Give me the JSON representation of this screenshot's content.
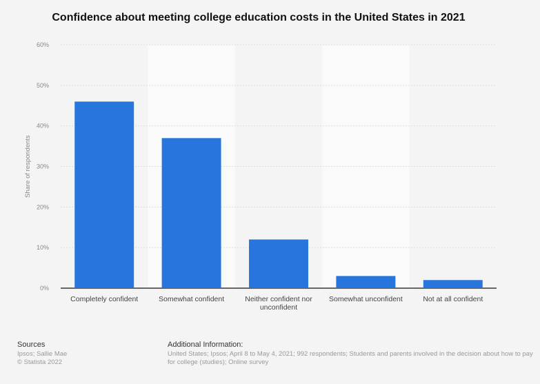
{
  "chart_data": {
    "type": "bar",
    "title": "Confidence about meeting college education costs in the United States in 2021",
    "categories": [
      "Completely confident",
      "Somewhat confident",
      "Neither confident nor unconfident",
      "Somewhat unconfident",
      "Not at all confident"
    ],
    "values": [
      46,
      37,
      12,
      3,
      2
    ],
    "xlabel": "",
    "ylabel": "Share of respondents",
    "ylim": [
      0,
      60
    ],
    "yticks": [
      "0%",
      "10%",
      "20%",
      "30%",
      "40%",
      "50%",
      "60%"
    ],
    "grid": true,
    "bar_color": "#2876dd"
  },
  "footer": {
    "sources_heading": "Sources",
    "sources": "Ipsos; Sallie Mae",
    "copyright": "© Statista 2022",
    "additional_heading": "Additional Information:",
    "additional_text": "United States; Ipsos; April 8 to May 4, 2021; 992 respondents; Students and parents involved in the decision about how to pay for college (studies); Online survey"
  }
}
